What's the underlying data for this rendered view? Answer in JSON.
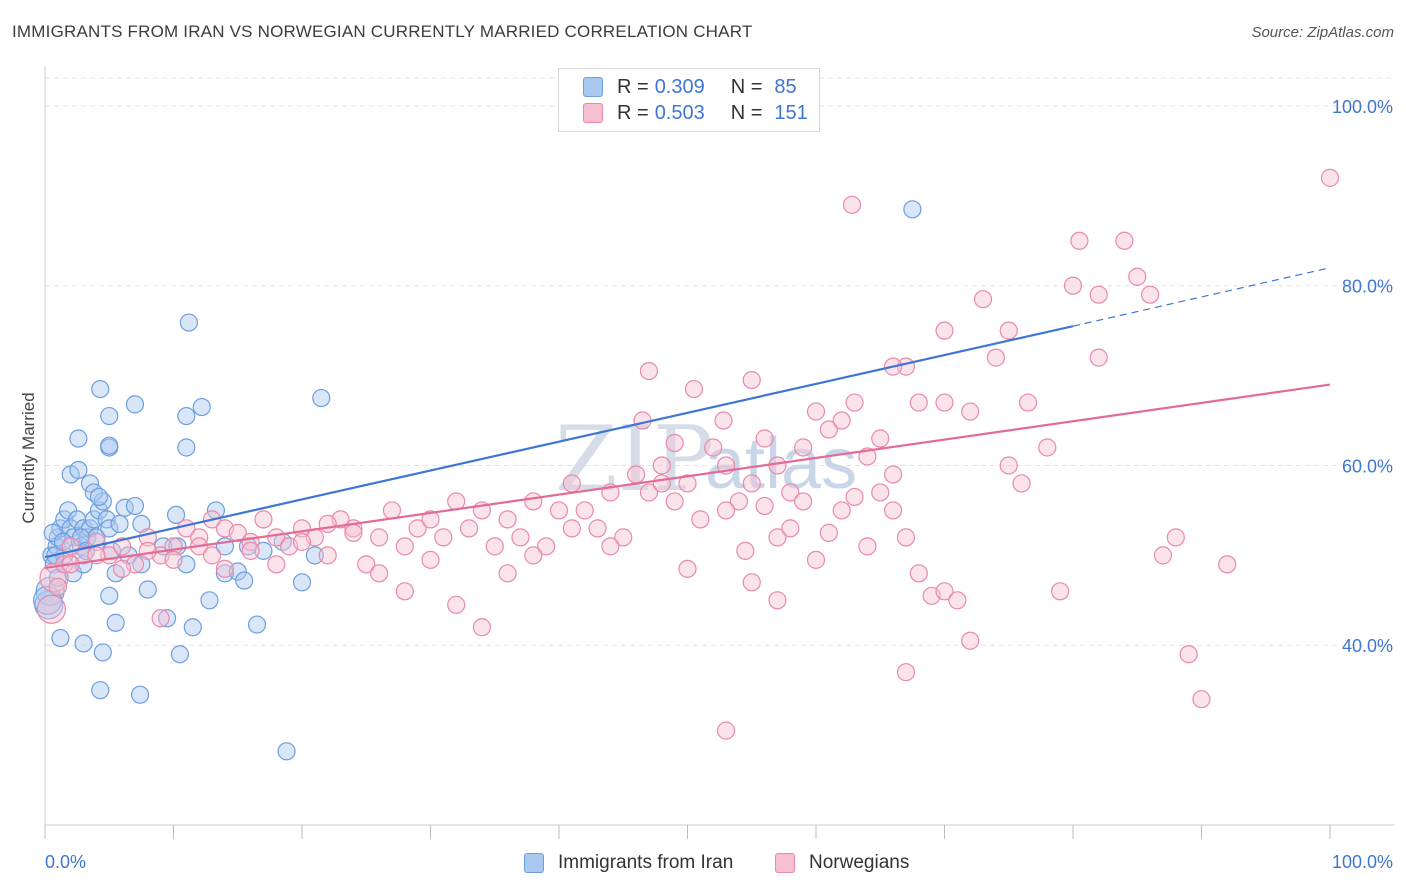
{
  "header": {
    "title": "IMMIGRANTS FROM IRAN VS NORWEGIAN CURRENTLY MARRIED CORRELATION CHART",
    "source": "Source: ZipAtlas.com"
  },
  "watermark": {
    "zip": "ZIP",
    "atlas": "atlas"
  },
  "legend": {
    "rows": [
      {
        "r_label": "R =",
        "r_value": "0.309",
        "n_label": "N =",
        "n_value": "85",
        "color": "#a9c8f0",
        "border": "#6d9ee0"
      },
      {
        "r_label": "R =",
        "r_value": "0.503",
        "n_label": "N =",
        "n_value": "151",
        "color": "#f7c0d2",
        "border": "#e88aa8"
      }
    ]
  },
  "bottom_legend": {
    "items": [
      {
        "label": "Immigrants from Iran",
        "color": "#a9c8f0",
        "border": "#6d9ee0"
      },
      {
        "label": "Norwegians",
        "color": "#f7c0d2",
        "border": "#e88aa8"
      }
    ]
  },
  "chart_data": {
    "type": "scatter",
    "ylabel": "Currently Married",
    "xlabel": "",
    "xlim": [
      0,
      100
    ],
    "ylim": [
      20,
      104
    ],
    "x_tick_labels": {
      "left": "0.0%",
      "right": "100.0%"
    },
    "y_ticks": [
      {
        "value": 40,
        "label": "40.0%"
      },
      {
        "value": 60,
        "label": "60.0%"
      },
      {
        "value": 80,
        "label": "80.0%"
      },
      {
        "value": 100,
        "label": "100.0%"
      }
    ],
    "grid": "horizontal-dashed",
    "colors": {
      "blue": "#3f76d4",
      "pink": "#e36b95",
      "blue_fill": "#a9c8f0",
      "pink_fill": "#f7c0d2"
    },
    "series": [
      {
        "name": "Immigrants from Iran",
        "color": "#3f76d4",
        "trend": {
          "x0": 0,
          "y0": 49.8,
          "x1": 80,
          "y1": 75.5,
          "dash_to_x": 100,
          "dash_to_y": 82
        },
        "points": [
          [
            0.5,
            50
          ],
          [
            0.7,
            49
          ],
          [
            0.9,
            51
          ],
          [
            1.0,
            52
          ],
          [
            1.2,
            53
          ],
          [
            1.5,
            54
          ],
          [
            1.8,
            55
          ],
          [
            2.0,
            53
          ],
          [
            2.2,
            52
          ],
          [
            2.5,
            54
          ],
          [
            2.8,
            51
          ],
          [
            3.0,
            53
          ],
          [
            3.3,
            52
          ],
          [
            3.5,
            53
          ],
          [
            3.8,
            54
          ],
          [
            4.0,
            52
          ],
          [
            4.2,
            55
          ],
          [
            4.5,
            56
          ],
          [
            4.8,
            54
          ],
          [
            5.0,
            53
          ],
          [
            0.3,
            44.5
          ],
          [
            0.4,
            46
          ],
          [
            1.2,
            40.8
          ],
          [
            2.0,
            59
          ],
          [
            2.6,
            59.5
          ],
          [
            3.5,
            58
          ],
          [
            3.8,
            57
          ],
          [
            2.6,
            63
          ],
          [
            4.3,
            68.5
          ],
          [
            5.0,
            65.5
          ],
          [
            5.0,
            62
          ],
          [
            7.0,
            66.8
          ],
          [
            5.0,
            62.2
          ],
          [
            6.2,
            55.3
          ],
          [
            7.0,
            55.5
          ],
          [
            7.5,
            53.5
          ],
          [
            5.2,
            50.5
          ],
          [
            5.5,
            48
          ],
          [
            6.5,
            50
          ],
          [
            5.0,
            45.5
          ],
          [
            5.5,
            42.5
          ],
          [
            3.0,
            40.2
          ],
          [
            4.5,
            39.2
          ],
          [
            4.3,
            35
          ],
          [
            7.4,
            34.5
          ],
          [
            8.0,
            46.2
          ],
          [
            7.5,
            49
          ],
          [
            9.2,
            51
          ],
          [
            10.2,
            54.5
          ],
          [
            10.3,
            51
          ],
          [
            9.5,
            43
          ],
          [
            11.0,
            49
          ],
          [
            10.5,
            39
          ],
          [
            11.5,
            42
          ],
          [
            11.0,
            62
          ],
          [
            11.0,
            65.5
          ],
          [
            12.2,
            66.5
          ],
          [
            12.8,
            45
          ],
          [
            11.2,
            75.9
          ],
          [
            13.3,
            55
          ],
          [
            14.0,
            48
          ],
          [
            14.0,
            51
          ],
          [
            15.0,
            48.2
          ],
          [
            15.5,
            47.2
          ],
          [
            15.8,
            51
          ],
          [
            16.5,
            42.3
          ],
          [
            17.0,
            50.5
          ],
          [
            18.8,
            28.2
          ],
          [
            18.5,
            51.5
          ],
          [
            20.0,
            47
          ],
          [
            21.0,
            50
          ],
          [
            21.5,
            67.5
          ],
          [
            67.5,
            88.5
          ],
          [
            1.0,
            47.5
          ],
          [
            1.5,
            50
          ],
          [
            2.2,
            48
          ],
          [
            3.0,
            49
          ],
          [
            0.6,
            52.5
          ],
          [
            0.8,
            50
          ],
          [
            1.4,
            51.5
          ],
          [
            2.8,
            52
          ],
          [
            3.2,
            50.5
          ],
          [
            4.2,
            56.5
          ],
          [
            5.8,
            53.5
          ],
          [
            0.2,
            45
          ]
        ]
      },
      {
        "name": "Norwegians",
        "color": "#e36b95",
        "trend": {
          "x0": 0,
          "y0": 48.6,
          "x1": 100,
          "y1": 69
        },
        "points": [
          [
            0.5,
            44
          ],
          [
            0.7,
            47.5
          ],
          [
            1.5,
            49
          ],
          [
            2.0,
            51
          ],
          [
            3.0,
            50
          ],
          [
            4.0,
            51.5
          ],
          [
            5.0,
            50
          ],
          [
            6.0,
            51
          ],
          [
            7.0,
            49
          ],
          [
            8.0,
            52
          ],
          [
            9.0,
            50
          ],
          [
            10.0,
            51
          ],
          [
            11.0,
            53
          ],
          [
            12.0,
            52
          ],
          [
            13.0,
            54
          ],
          [
            14.0,
            53
          ],
          [
            15.0,
            52.5
          ],
          [
            16.0,
            51.5
          ],
          [
            17.0,
            54
          ],
          [
            18.0,
            52
          ],
          [
            19.0,
            51
          ],
          [
            20.0,
            53
          ],
          [
            21.0,
            52
          ],
          [
            22.0,
            50
          ],
          [
            23.0,
            54
          ],
          [
            24.0,
            53
          ],
          [
            25.0,
            49
          ],
          [
            26.0,
            52
          ],
          [
            27.0,
            55
          ],
          [
            28.0,
            51
          ],
          [
            29.0,
            53
          ],
          [
            30.0,
            54
          ],
          [
            31.0,
            52
          ],
          [
            32.0,
            56
          ],
          [
            33.0,
            53
          ],
          [
            34.0,
            55
          ],
          [
            35.0,
            51
          ],
          [
            36.0,
            54
          ],
          [
            37.0,
            52
          ],
          [
            38.0,
            56
          ],
          [
            39.0,
            51
          ],
          [
            40.0,
            55
          ],
          [
            41.0,
            58
          ],
          [
            42.0,
            55
          ],
          [
            43.0,
            53
          ],
          [
            44.0,
            57
          ],
          [
            45.0,
            52
          ],
          [
            46.0,
            59
          ],
          [
            47.0,
            57
          ],
          [
            48.0,
            60
          ],
          [
            49.0,
            56
          ],
          [
            50.0,
            58
          ],
          [
            51.0,
            54
          ],
          [
            52.0,
            62
          ],
          [
            53.0,
            60
          ],
          [
            54.0,
            56
          ],
          [
            55.0,
            58
          ],
          [
            56.0,
            63
          ],
          [
            57.0,
            60
          ],
          [
            58.0,
            57
          ],
          [
            59.0,
            62
          ],
          [
            60.0,
            66
          ],
          [
            61.0,
            64
          ],
          [
            62.0,
            65
          ],
          [
            63.0,
            67
          ],
          [
            64.0,
            61
          ],
          [
            65.0,
            63
          ],
          [
            66.0,
            59
          ],
          [
            67.0,
            71
          ],
          [
            68.0,
            67
          ],
          [
            70.0,
            67
          ],
          [
            72.0,
            66
          ],
          [
            74.0,
            72
          ],
          [
            75.0,
            60
          ],
          [
            76.0,
            58
          ],
          [
            78.0,
            62
          ],
          [
            79.0,
            46
          ],
          [
            80.0,
            80
          ],
          [
            82.0,
            79
          ],
          [
            84.0,
            85
          ],
          [
            85.0,
            81
          ],
          [
            86.0,
            79
          ],
          [
            87.0,
            50
          ],
          [
            88.0,
            52
          ],
          [
            89.0,
            39
          ],
          [
            90.0,
            34
          ],
          [
            92.0,
            49
          ],
          [
            100.0,
            92
          ],
          [
            62.8,
            89
          ],
          [
            66.0,
            71
          ],
          [
            70.0,
            75
          ],
          [
            73.0,
            78.5
          ],
          [
            75.0,
            75
          ],
          [
            80.5,
            85
          ],
          [
            82.0,
            72
          ],
          [
            76.5,
            67
          ],
          [
            55.0,
            69.5
          ],
          [
            52.8,
            65
          ],
          [
            50.5,
            68.5
          ],
          [
            47.0,
            70.5
          ],
          [
            46.5,
            65
          ],
          [
            49.0,
            62.5
          ],
          [
            53.0,
            55
          ],
          [
            54.5,
            50.5
          ],
          [
            56.0,
            55.5
          ],
          [
            57.0,
            52
          ],
          [
            58.0,
            53
          ],
          [
            59.0,
            56
          ],
          [
            60.0,
            49.5
          ],
          [
            61.0,
            52.5
          ],
          [
            62.0,
            55
          ],
          [
            63.0,
            56.5
          ],
          [
            64.0,
            51
          ],
          [
            65.0,
            57
          ],
          [
            66.0,
            55
          ],
          [
            67.0,
            52
          ],
          [
            68.0,
            48
          ],
          [
            69.0,
            45.5
          ],
          [
            70.0,
            46
          ],
          [
            71.0,
            45
          ],
          [
            72.0,
            40.5
          ],
          [
            67.0,
            37
          ],
          [
            53.0,
            30.5
          ],
          [
            55.0,
            47
          ],
          [
            57.0,
            45
          ],
          [
            50.0,
            48.5
          ],
          [
            48.0,
            58
          ],
          [
            44.0,
            51
          ],
          [
            41.0,
            53
          ],
          [
            38.0,
            50
          ],
          [
            36.0,
            48
          ],
          [
            34.0,
            42
          ],
          [
            32.0,
            44.5
          ],
          [
            30.0,
            49.5
          ],
          [
            28.0,
            46
          ],
          [
            26.0,
            48
          ],
          [
            24.0,
            52.5
          ],
          [
            22.0,
            53.5
          ],
          [
            20.0,
            51.5
          ],
          [
            18.0,
            49
          ],
          [
            16.0,
            50.5
          ],
          [
            14.0,
            48.5
          ],
          [
            12.0,
            51
          ],
          [
            10.0,
            49.5
          ],
          [
            8.0,
            50.5
          ],
          [
            6.0,
            48.5
          ],
          [
            4.0,
            50
          ],
          [
            2.0,
            49
          ],
          [
            1.0,
            46.5
          ],
          [
            9.0,
            43
          ],
          [
            13.0,
            50
          ]
        ]
      }
    ]
  }
}
